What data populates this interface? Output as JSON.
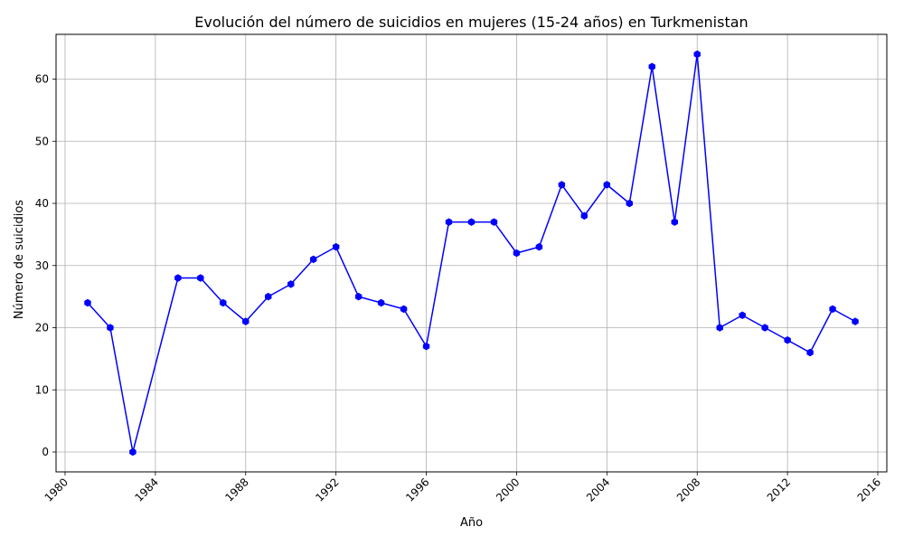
{
  "chart_data": {
    "type": "line",
    "title": "Evolución del número de suicidios en mujeres (15-24 años) en Turkmenistan",
    "xlabel": "Año",
    "ylabel": "Número de suicidios",
    "xlim": [
      1979.6,
      2016.4
    ],
    "ylim": [
      -3.2,
      67.2
    ],
    "xticks": [
      "1980",
      "1984",
      "1988",
      "1992",
      "1996",
      "2000",
      "2004",
      "2008",
      "2012",
      "2016"
    ],
    "yticks": [
      "0",
      "10",
      "20",
      "30",
      "40",
      "50",
      "60"
    ],
    "grid": true,
    "series": [
      {
        "color": "#0000ff",
        "marker": "hexagon",
        "x": [
          1981,
          1982,
          1983,
          1985,
          1986,
          1987,
          1988,
          1989,
          1990,
          1991,
          1992,
          1993,
          1994,
          1995,
          1996,
          1997,
          1998,
          1999,
          2000,
          2001,
          2002,
          2003,
          2004,
          2005,
          2006,
          2007,
          2008,
          2009,
          2010,
          2011,
          2012,
          2013,
          2014,
          2015
        ],
        "y": [
          24,
          20,
          0,
          28,
          28,
          24,
          21,
          25,
          27,
          31,
          33,
          25,
          24,
          23,
          17,
          37,
          37,
          37,
          32,
          33,
          43,
          38,
          43,
          40,
          62,
          37,
          64,
          20,
          22,
          20,
          18,
          16,
          23,
          21
        ]
      }
    ]
  }
}
